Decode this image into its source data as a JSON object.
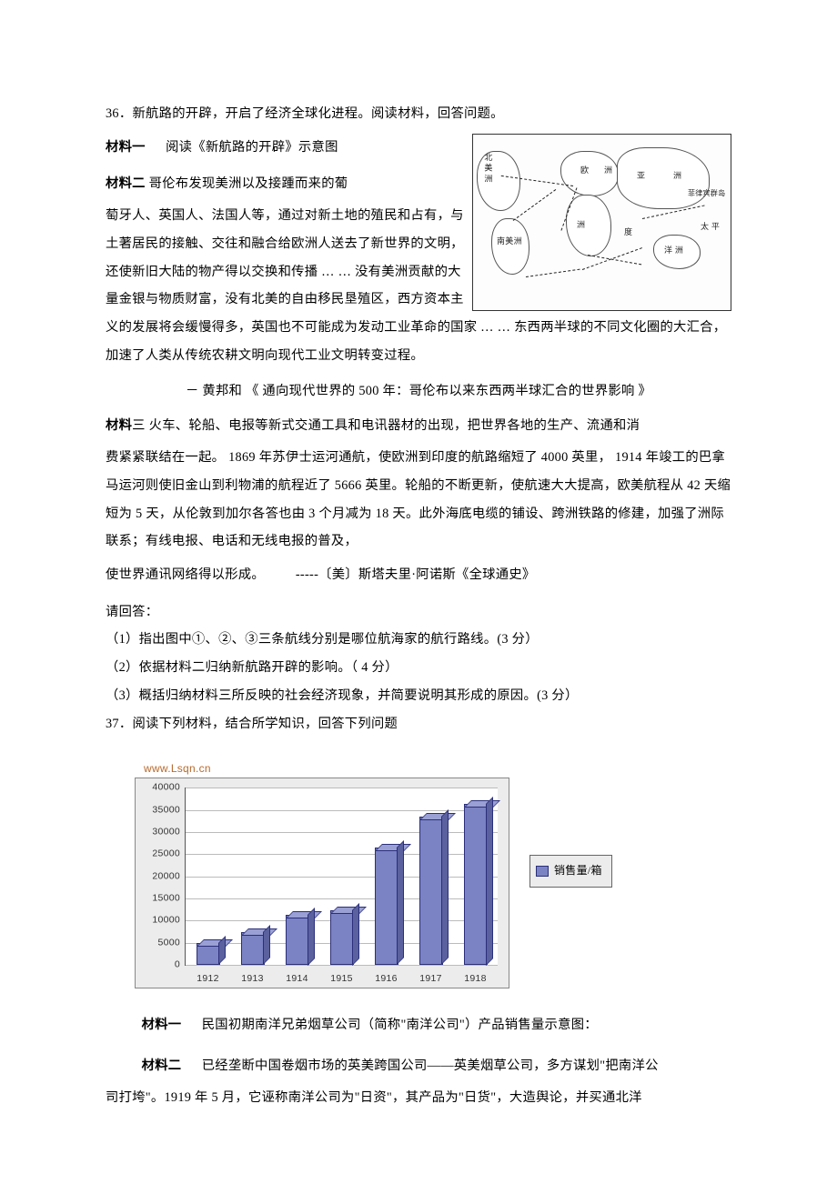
{
  "q36": {
    "num_line": "36．新航路的开辟，开启了经济全球化进程。阅读材料，回答问题。",
    "m1_title": "材料一",
    "m1_body": "阅读《新航路的开辟》示意图",
    "m2_title": "材料二",
    "m2_lead": " 哥伦布发现美洲以及接踵而来的葡",
    "m2_body": "萄牙人、英国人、法国人等，通过对新土地的殖民和占有，与土著居民的接触、交往和融合给欧洲人送去了新世界的文明，还使新旧大陆的物产得以交换和传播 … … 没有美洲贡献的大量金银与物质财富，没有北美的自由移民垦殖区，西方资本主义的发展将会缓慢得多，英国也不可能成为发动工业革命的国家 … … 东西两半球的不同文化圈的大汇合，加速了人类从传统农耕文明向现代工业文明转变过程。",
    "m2_src": "－ 黄邦和 《 通向现代世界的 500 年：哥伦布以来东西两半球汇合的世界影响 》",
    "m3_title": "材料",
    "m3_title2": "三",
    "m3_lead": " 火车、轮船、电报等新式交通工具和电讯器材的出现，把世界各地的生产、流通和消",
    "m3_body": "费紧紧联结在一起。 1869 年苏伊士运河通航，使欧洲到印度的航路缩短了 4000 英里， 1914 年竣工的巴拿马运河则使旧金山到利物浦的航程近了 5666 英里。轮船的不断更新，使航速大大提高，欧美航程从 42 天缩短为 5 天，从伦敦到加尔各答也由 3 个月减为 18 天。此外海底电缆的铺设、跨洲铁路的修建，加强了洲际联系；有线电报、电话和无线电报的普及，",
    "m3_last": "使世界通讯网络得以形成。",
    "m3_src": "-----〔美〕斯塔夫里·阿诺斯《全球通史》",
    "ans_head": "请回答：",
    "q1": "（1）指出图中①、②、③三条航线分别是哪位航海家的航行路线。(3 分）",
    "q2": "（2）依据材料二归纳新航路开辟的影响。（ 4 分）",
    "q3": "（3）概括归纳材料三所反映的社会经济现象，并简要说明其形成的原因。(3 分）",
    "map": {
      "labels": {
        "na": "北 美 洲",
        "sa": "南美洲",
        "eu": "欧",
        "af": "洲",
        "as1": "亚",
        "as2": "洲",
        "oc": "洋 洲",
        "ph": "菲律宾群岛",
        "pac": "太 平",
        "ind": "度"
      }
    }
  },
  "q37": {
    "num_line": "37．阅读下列材料，结合所学知识，回答下列问题",
    "chart": {
      "watermark": "www.Lsqn.cn",
      "type": "bar",
      "categories": [
        "1912",
        "1913",
        "1914",
        "1915",
        "1916",
        "1917",
        "1918"
      ],
      "values": [
        4500,
        7000,
        11000,
        12000,
        26000,
        33000,
        36000
      ],
      "ylim": [
        0,
        40000
      ],
      "ytick_step": 5000,
      "yticks": [
        "0",
        "5000",
        "10000",
        "15000",
        "20000",
        "25000",
        "30000",
        "35000",
        "40000"
      ],
      "bar_color_front": "#7b83c4",
      "bar_color_top": "#9aa0d4",
      "bar_color_side": "#5a619e",
      "background_color": "#ececec",
      "plot_bg": "#ffffff",
      "grid_color": "#bbbbbb",
      "legend_label": "销售量/箱"
    },
    "m1_title": "材料一",
    "m1_body": "民国初期南洋兄弟烟草公司（简称\"南洋公司\"）产品销售量示意图：",
    "m2_title": "材料二",
    "m2_body": "已经垄断中国卷烟市场的英美跨国公司——英美烟草公司，多方谋划\"把南洋公",
    "m2_rest": "司打垮\"。1919 年 5 月，它诬称南洋公司为\"日资\"，其产品为\"日货\"，大造舆论，并买通北洋"
  }
}
